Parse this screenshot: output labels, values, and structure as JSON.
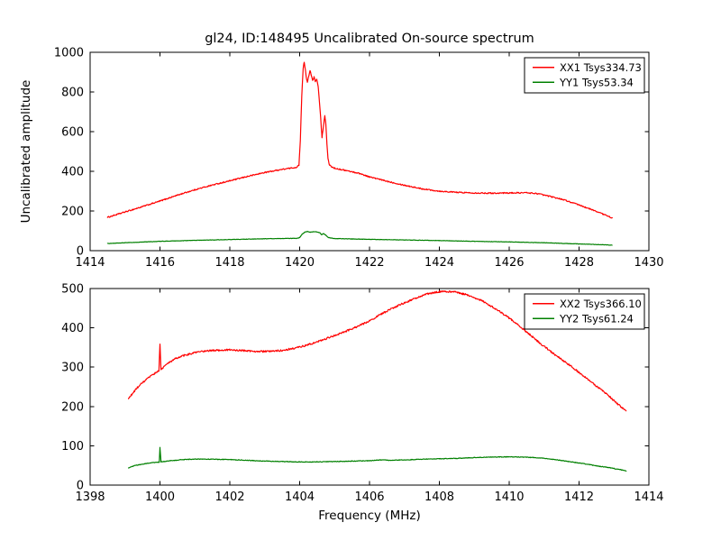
{
  "figure": {
    "title": "gl24, ID:148495 Uncalibrated On-source spectrum",
    "xlabel": "Frequency (MHz)",
    "ylabel": "Uncalibrated amplitude",
    "background_color": "#ffffff",
    "axis_color": "#000000"
  },
  "chart_data": [
    {
      "type": "line",
      "id": "top",
      "xlim": [
        1414,
        1430
      ],
      "ylim": [
        0,
        1000
      ],
      "xticks": [
        1414,
        1416,
        1418,
        1420,
        1422,
        1424,
        1426,
        1428,
        1430
      ],
      "yticks": [
        0,
        200,
        400,
        600,
        800,
        1000
      ],
      "grid": false,
      "legend": {
        "position": "upper right",
        "entries": [
          {
            "label": "XX1 Tsys334.73",
            "color": "#ff0000"
          },
          {
            "label": "YY1 Tsys53.34",
            "color": "#008000"
          }
        ]
      },
      "series": [
        {
          "name": "XX1 Tsys334.73",
          "color": "#ff0000",
          "noise": 3,
          "points": [
            [
              1414.5,
              168
            ],
            [
              1415,
              195
            ],
            [
              1415.5,
              222
            ],
            [
              1416,
              250
            ],
            [
              1416.5,
              280
            ],
            [
              1417,
              307
            ],
            [
              1417.5,
              331
            ],
            [
              1418,
              352
            ],
            [
              1418.5,
              374
            ],
            [
              1419,
              394
            ],
            [
              1419.4,
              407
            ],
            [
              1419.7,
              415
            ],
            [
              1419.9,
              420
            ],
            [
              1419.98,
              430
            ],
            [
              1420.02,
              560
            ],
            [
              1420.06,
              780
            ],
            [
              1420.1,
              920
            ],
            [
              1420.13,
              952
            ],
            [
              1420.16,
              915
            ],
            [
              1420.19,
              872
            ],
            [
              1420.22,
              848
            ],
            [
              1420.26,
              880
            ],
            [
              1420.3,
              908
            ],
            [
              1420.34,
              880
            ],
            [
              1420.37,
              858
            ],
            [
              1420.41,
              876
            ],
            [
              1420.45,
              852
            ],
            [
              1420.49,
              862
            ],
            [
              1420.53,
              830
            ],
            [
              1420.56,
              762
            ],
            [
              1420.59,
              700
            ],
            [
              1420.62,
              618
            ],
            [
              1420.64,
              572
            ],
            [
              1420.67,
              610
            ],
            [
              1420.7,
              655
            ],
            [
              1420.72,
              678
            ],
            [
              1420.75,
              640
            ],
            [
              1420.78,
              540
            ],
            [
              1420.81,
              465
            ],
            [
              1420.85,
              432
            ],
            [
              1420.92,
              422
            ],
            [
              1421,
              416
            ],
            [
              1421.3,
              405
            ],
            [
              1421.7,
              390
            ],
            [
              1422,
              372
            ],
            [
              1422.5,
              350
            ],
            [
              1423,
              330
            ],
            [
              1423.5,
              312
            ],
            [
              1424,
              300
            ],
            [
              1424.5,
              294
            ],
            [
              1425,
              291
            ],
            [
              1425.5,
              290
            ],
            [
              1426,
              291
            ],
            [
              1426.5,
              292
            ],
            [
              1426.8,
              288
            ],
            [
              1427,
              280
            ],
            [
              1427.5,
              260
            ],
            [
              1428,
              230
            ],
            [
              1428.5,
              198
            ],
            [
              1428.95,
              165
            ]
          ]
        },
        {
          "name": "YY1 Tsys53.34",
          "color": "#008000",
          "noise": 1,
          "points": [
            [
              1414.5,
              36
            ],
            [
              1415,
              40
            ],
            [
              1416,
              47
            ],
            [
              1417,
              52
            ],
            [
              1418,
              56
            ],
            [
              1419,
              60
            ],
            [
              1419.9,
              62
            ],
            [
              1420.0,
              66
            ],
            [
              1420.08,
              85
            ],
            [
              1420.15,
              93
            ],
            [
              1420.22,
              97
            ],
            [
              1420.3,
              93
            ],
            [
              1420.4,
              96
            ],
            [
              1420.5,
              94
            ],
            [
              1420.58,
              90
            ],
            [
              1420.63,
              80
            ],
            [
              1420.68,
              86
            ],
            [
              1420.75,
              78
            ],
            [
              1420.82,
              66
            ],
            [
              1421,
              61
            ],
            [
              1421.5,
              59
            ],
            [
              1422,
              57
            ],
            [
              1423,
              54
            ],
            [
              1424,
              51
            ],
            [
              1425,
              47
            ],
            [
              1426,
              44
            ],
            [
              1427,
              40
            ],
            [
              1428,
              34
            ],
            [
              1428.95,
              28
            ]
          ]
        }
      ]
    },
    {
      "type": "line",
      "id": "bottom",
      "xlim": [
        1398,
        1414
      ],
      "ylim": [
        0,
        500
      ],
      "xticks": [
        1398,
        1400,
        1402,
        1404,
        1406,
        1408,
        1410,
        1412,
        1414
      ],
      "yticks": [
        0,
        100,
        200,
        300,
        400,
        500
      ],
      "grid": false,
      "legend": {
        "position": "upper right",
        "entries": [
          {
            "label": "XX2 Tsys366.10",
            "color": "#ff0000"
          },
          {
            "label": "YY2 Tsys61.24",
            "color": "#008000"
          }
        ]
      },
      "series": [
        {
          "name": "XX2 Tsys366.10",
          "color": "#ff0000",
          "noise": 2.2,
          "points": [
            [
              1399.1,
              220
            ],
            [
              1399.35,
              248
            ],
            [
              1399.6,
              268
            ],
            [
              1399.85,
              284
            ],
            [
              1399.97,
              292
            ],
            [
              1400.0,
              358
            ],
            [
              1400.03,
              294
            ],
            [
              1400.2,
              308
            ],
            [
              1400.45,
              322
            ],
            [
              1400.7,
              330
            ],
            [
              1401,
              337
            ],
            [
              1401.3,
              341
            ],
            [
              1401.6,
              343
            ],
            [
              1402,
              344
            ],
            [
              1402.4,
              342
            ],
            [
              1402.8,
              340
            ],
            [
              1403.2,
              340
            ],
            [
              1403.6,
              344
            ],
            [
              1404,
              351
            ],
            [
              1404.4,
              361
            ],
            [
              1404.8,
              374
            ],
            [
              1405.2,
              387
            ],
            [
              1405.6,
              401
            ],
            [
              1406,
              418
            ],
            [
              1406.4,
              438
            ],
            [
              1406.8,
              456
            ],
            [
              1407.2,
              471
            ],
            [
              1407.6,
              485
            ],
            [
              1408,
              492
            ],
            [
              1408.4,
              492
            ],
            [
              1408.8,
              484
            ],
            [
              1409.2,
              470
            ],
            [
              1409.6,
              449
            ],
            [
              1410,
              425
            ],
            [
              1410.4,
              397
            ],
            [
              1410.8,
              367
            ],
            [
              1411.2,
              339
            ],
            [
              1411.6,
              313
            ],
            [
              1412,
              287
            ],
            [
              1412.4,
              259
            ],
            [
              1412.8,
              231
            ],
            [
              1413.1,
              207
            ],
            [
              1413.35,
              188
            ]
          ]
        },
        {
          "name": "YY2 Tsys61.24",
          "color": "#008000",
          "noise": 0.8,
          "points": [
            [
              1399.1,
              44
            ],
            [
              1399.3,
              50
            ],
            [
              1399.6,
              55
            ],
            [
              1399.9,
              58
            ],
            [
              1399.98,
              58
            ],
            [
              1400.0,
              95
            ],
            [
              1400.03,
              59
            ],
            [
              1400.3,
              62
            ],
            [
              1400.7,
              65
            ],
            [
              1401,
              66
            ],
            [
              1401.4,
              66
            ],
            [
              1402,
              65
            ],
            [
              1402.5,
              63
            ],
            [
              1403,
              61
            ],
            [
              1403.5,
              60
            ],
            [
              1404,
              59
            ],
            [
              1404.5,
              59
            ],
            [
              1405,
              60
            ],
            [
              1405.5,
              61
            ],
            [
              1406,
              62
            ],
            [
              1406.3,
              64
            ],
            [
              1406.6,
              63
            ],
            [
              1407,
              64
            ],
            [
              1407.5,
              66
            ],
            [
              1408,
              67
            ],
            [
              1408.5,
              68
            ],
            [
              1409,
              70
            ],
            [
              1409.5,
              71
            ],
            [
              1410,
              72
            ],
            [
              1410.5,
              71
            ],
            [
              1410.9,
              69
            ],
            [
              1411.3,
              65
            ],
            [
              1411.7,
              60
            ],
            [
              1412.1,
              55
            ],
            [
              1412.5,
              49
            ],
            [
              1412.9,
              44
            ],
            [
              1413.2,
              39
            ],
            [
              1413.35,
              36
            ]
          ]
        }
      ]
    }
  ]
}
